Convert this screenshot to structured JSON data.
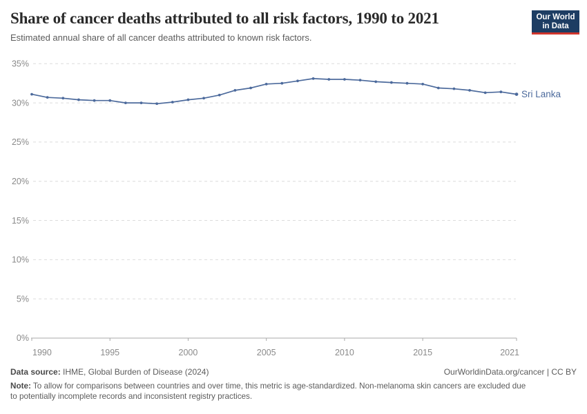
{
  "header": {
    "title": "Share of cancer deaths attributed to all risk factors, 1990 to 2021",
    "subtitle": "Estimated annual share of all cancer deaths attributed to known risk factors.",
    "logo": {
      "line1": "Our World",
      "line2": "in Data",
      "bg_color": "#1d3d63",
      "accent_color": "#d0352c"
    }
  },
  "chart_data": {
    "type": "line",
    "title": "Share of cancer deaths attributed to all risk factors, 1990 to 2021",
    "xlabel": "",
    "ylabel": "",
    "x": [
      1990,
      1991,
      1992,
      1993,
      1994,
      1995,
      1996,
      1997,
      1998,
      1999,
      2000,
      2001,
      2002,
      2003,
      2004,
      2005,
      2006,
      2007,
      2008,
      2009,
      2010,
      2011,
      2012,
      2013,
      2014,
      2015,
      2016,
      2017,
      2018,
      2019,
      2020,
      2021
    ],
    "series": [
      {
        "name": "Sri Lanka",
        "color": "#4c6a9c",
        "values": [
          31.1,
          30.7,
          30.6,
          30.4,
          30.3,
          30.3,
          30.0,
          30.0,
          29.9,
          30.1,
          30.4,
          30.6,
          31.0,
          31.6,
          31.9,
          32.4,
          32.5,
          32.8,
          33.1,
          33.0,
          33.0,
          32.9,
          32.7,
          32.6,
          32.5,
          32.4,
          31.9,
          31.8,
          31.6,
          31.3,
          31.4,
          31.1
        ]
      }
    ],
    "xlim": [
      1990,
      2021
    ],
    "ylim": [
      0,
      35
    ],
    "x_ticks": [
      1990,
      1995,
      2000,
      2005,
      2010,
      2015,
      2021
    ],
    "y_ticks": [
      0,
      5,
      10,
      15,
      20,
      25,
      30,
      35
    ],
    "y_tick_suffix": "%",
    "grid": "horizontal-dashed",
    "legend_position": "end-of-line-label",
    "grid_color": "#dcdcdc",
    "axis_color": "#a8a8a8",
    "tick_label_color": "#8a8a8a"
  },
  "footer": {
    "datasource_label": "Data source:",
    "datasource": " IHME, Global Burden of Disease (2024)",
    "credit": "OurWorldinData.org/cancer | CC BY",
    "note_label": "Note:",
    "note": " To allow for comparisons between countries and over time, this metric is age-standardized. Non-melanoma skin cancers are excluded due to potentially incomplete records and inconsistent registry practices."
  }
}
